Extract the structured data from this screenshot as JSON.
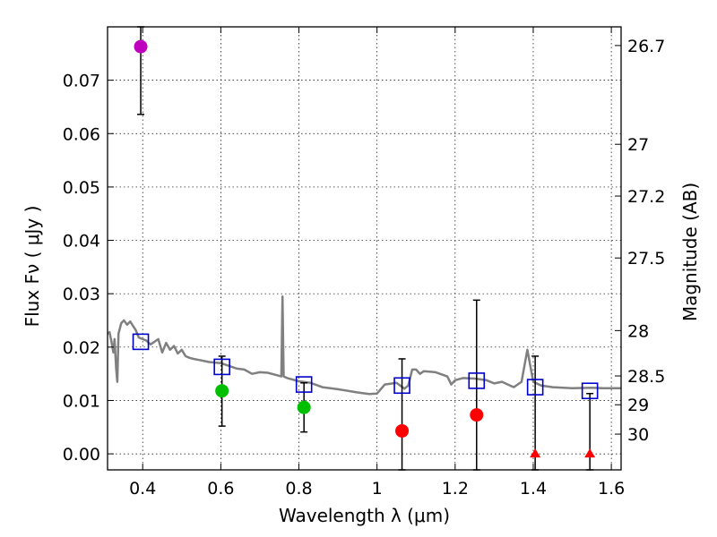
{
  "chart_data": {
    "type": "scatter",
    "title": "",
    "xlabel": "Wavelength  λ (μm)",
    "ylabel": "Flux  Fν  ( μJy )",
    "ylabel_right": "Magnitude (AB)",
    "xlim": [
      0.31,
      1.625
    ],
    "ylim": [
      -0.003,
      0.08
    ],
    "grid": true,
    "x_ticks": [
      0.4,
      0.6,
      0.8,
      1.0,
      1.2,
      1.4,
      1.6
    ],
    "x_tick_labels": [
      "0.4",
      "0.6",
      "0.8",
      "1",
      "1.2",
      "1.4",
      "1.6"
    ],
    "y_ticks": [
      0.0,
      0.01,
      0.02,
      0.03,
      0.04,
      0.05,
      0.06,
      0.07
    ],
    "y_tick_labels": [
      "0.00",
      "0.01",
      "0.02",
      "0.03",
      "0.04",
      "0.05",
      "0.06",
      "0.07"
    ],
    "right_ticks": [
      {
        "label": "26.7",
        "flux": 0.0765
      },
      {
        "label": "27",
        "flux": 0.058
      },
      {
        "label": "27.2",
        "flux": 0.0483
      },
      {
        "label": "27.5",
        "flux": 0.0367
      },
      {
        "label": "28",
        "flux": 0.0231
      },
      {
        "label": "28.5",
        "flux": 0.0146
      },
      {
        "label": "29",
        "flux": 0.0092
      },
      {
        "label": "30",
        "flux": 0.0037
      }
    ],
    "sed_model": {
      "name": "model spectrum",
      "color": "#808080",
      "points": [
        [
          0.31,
          0.0225
        ],
        [
          0.315,
          0.0228
        ],
        [
          0.32,
          0.021
        ],
        [
          0.325,
          0.019
        ],
        [
          0.328,
          0.0215
        ],
        [
          0.332,
          0.016
        ],
        [
          0.335,
          0.0135
        ],
        [
          0.338,
          0.0225
        ],
        [
          0.345,
          0.0245
        ],
        [
          0.352,
          0.025
        ],
        [
          0.36,
          0.0242
        ],
        [
          0.368,
          0.0248
        ],
        [
          0.375,
          0.024
        ],
        [
          0.382,
          0.0232
        ],
        [
          0.39,
          0.0218
        ],
        [
          0.4,
          0.0215
        ],
        [
          0.41,
          0.0212
        ],
        [
          0.42,
          0.0205
        ],
        [
          0.43,
          0.021
        ],
        [
          0.44,
          0.0215
        ],
        [
          0.45,
          0.019
        ],
        [
          0.46,
          0.0208
        ],
        [
          0.47,
          0.0195
        ],
        [
          0.48,
          0.0202
        ],
        [
          0.49,
          0.0188
        ],
        [
          0.5,
          0.0195
        ],
        [
          0.51,
          0.0183
        ],
        [
          0.52,
          0.018
        ],
        [
          0.53,
          0.0178
        ],
        [
          0.55,
          0.0175
        ],
        [
          0.57,
          0.0172
        ],
        [
          0.6,
          0.017
        ],
        [
          0.62,
          0.0165
        ],
        [
          0.64,
          0.016
        ],
        [
          0.66,
          0.0158
        ],
        [
          0.68,
          0.015
        ],
        [
          0.7,
          0.0153
        ],
        [
          0.72,
          0.0152
        ],
        [
          0.74,
          0.0148
        ],
        [
          0.755,
          0.0145
        ],
        [
          0.758,
          0.0295
        ],
        [
          0.761,
          0.0145
        ],
        [
          0.77,
          0.0142
        ],
        [
          0.8,
          0.0136
        ],
        [
          0.83,
          0.0133
        ],
        [
          0.86,
          0.0125
        ],
        [
          0.9,
          0.0121
        ],
        [
          0.95,
          0.0115
        ],
        [
          0.98,
          0.0112
        ],
        [
          1.0,
          0.0113
        ],
        [
          1.02,
          0.013
        ],
        [
          1.05,
          0.0133
        ],
        [
          1.07,
          0.0122
        ],
        [
          1.08,
          0.0128
        ],
        [
          1.09,
          0.0158
        ],
        [
          1.1,
          0.0158
        ],
        [
          1.11,
          0.015
        ],
        [
          1.12,
          0.0155
        ],
        [
          1.15,
          0.0153
        ],
        [
          1.18,
          0.0145
        ],
        [
          1.19,
          0.013
        ],
        [
          1.2,
          0.0138
        ],
        [
          1.22,
          0.0142
        ],
        [
          1.25,
          0.0141
        ],
        [
          1.28,
          0.0138
        ],
        [
          1.3,
          0.0132
        ],
        [
          1.32,
          0.0135
        ],
        [
          1.35,
          0.0125
        ],
        [
          1.37,
          0.0135
        ],
        [
          1.385,
          0.0195
        ],
        [
          1.4,
          0.0135
        ],
        [
          1.42,
          0.0128
        ],
        [
          1.45,
          0.0125
        ],
        [
          1.5,
          0.0123
        ],
        [
          1.55,
          0.0124
        ],
        [
          1.58,
          0.0123
        ],
        [
          1.625,
          0.0123
        ]
      ]
    },
    "series": [
      {
        "name": "model band fluxes",
        "marker": "open-square",
        "color": "#0000cc",
        "points": [
          {
            "x": 0.395,
            "y": 0.021
          },
          {
            "x": 0.603,
            "y": 0.0163
          },
          {
            "x": 0.813,
            "y": 0.013
          },
          {
            "x": 1.064,
            "y": 0.0128
          },
          {
            "x": 1.255,
            "y": 0.0137
          },
          {
            "x": 1.405,
            "y": 0.0125
          },
          {
            "x": 1.545,
            "y": 0.0118
          }
        ]
      },
      {
        "name": "observed flux",
        "marker": "circle",
        "points": [
          {
            "x": 0.395,
            "y": 0.0763,
            "color": "#bf00bf",
            "err_low": 0.0636,
            "err_high": 0.08
          },
          {
            "x": 0.603,
            "y": 0.0118,
            "color": "#00bf00",
            "err_low": 0.0052,
            "err_high": 0.0183
          },
          {
            "x": 0.813,
            "y": 0.0087,
            "color": "#00bf00",
            "err_low": 0.0041,
            "err_high": 0.0133
          },
          {
            "x": 1.064,
            "y": 0.0043,
            "color": "#ff0000",
            "err_low": -0.003,
            "err_high": 0.0178
          },
          {
            "x": 1.255,
            "y": 0.0073,
            "color": "#ff0000",
            "err_low": -0.003,
            "err_high": 0.0288
          }
        ]
      },
      {
        "name": "upper limits",
        "marker": "triangle",
        "color": "#ff0000",
        "points": [
          {
            "x": 1.405,
            "y": 0.0,
            "err_low": -0.003,
            "err_high": 0.0183
          },
          {
            "x": 1.545,
            "y": 0.0,
            "err_low": -0.003,
            "err_high": 0.0113
          }
        ]
      }
    ]
  }
}
